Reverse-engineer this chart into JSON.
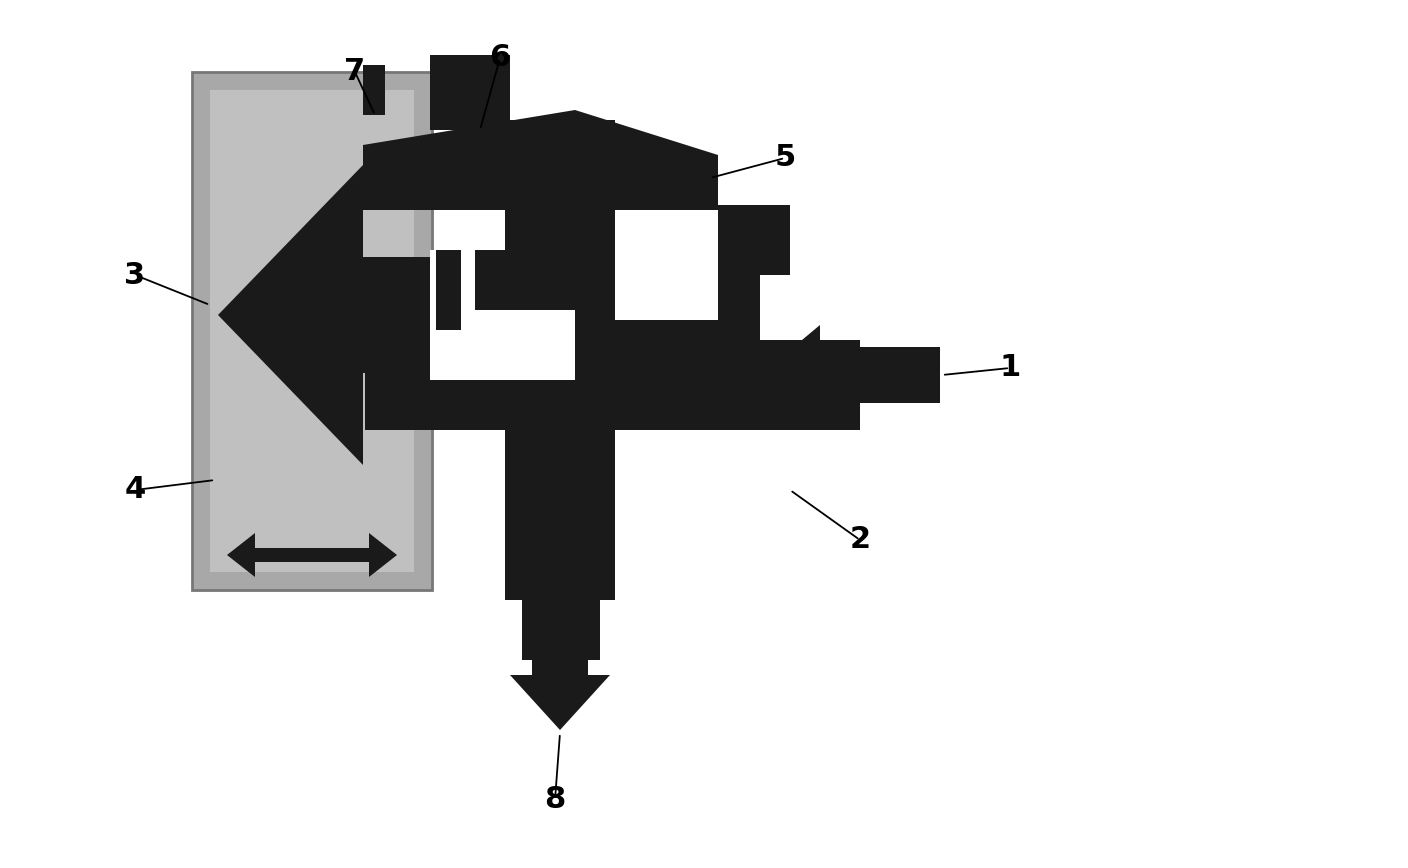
{
  "bg_color": "#ffffff",
  "BLACK": "#1a1a1a",
  "GRAY_DARK": "#a8a8a8",
  "GRAY_MID": "#c0c0c0",
  "GRAY_LIGHT": "#d0d0d0"
}
